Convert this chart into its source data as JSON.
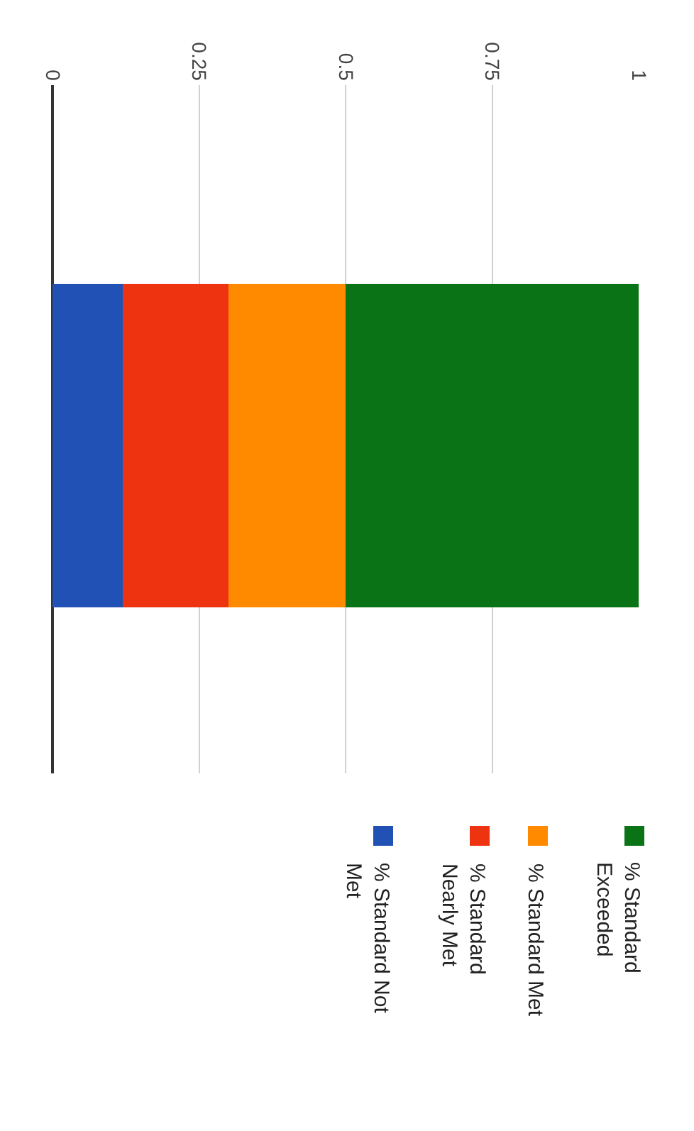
{
  "chart_data": {
    "type": "bar",
    "orientation": "horizontal",
    "stacked": true,
    "categories": [
      null
    ],
    "series": [
      {
        "name": "% Standard Not Met",
        "color": "#2151b5",
        "values": [
          0.12
        ]
      },
      {
        "name": "% Standard Nearly Met",
        "color": "#ee3311",
        "values": [
          0.18
        ]
      },
      {
        "name": "% Standard Met",
        "color": "#ff8a00",
        "values": [
          0.2
        ]
      },
      {
        "name": "% Standard Exceeded",
        "color": "#0a7316",
        "values": [
          0.5
        ]
      }
    ],
    "xlim": [
      0,
      1
    ],
    "xticks": [
      0,
      0.25,
      0.5,
      0.75,
      1
    ],
    "grid": "x",
    "legend": "bottom"
  }
}
